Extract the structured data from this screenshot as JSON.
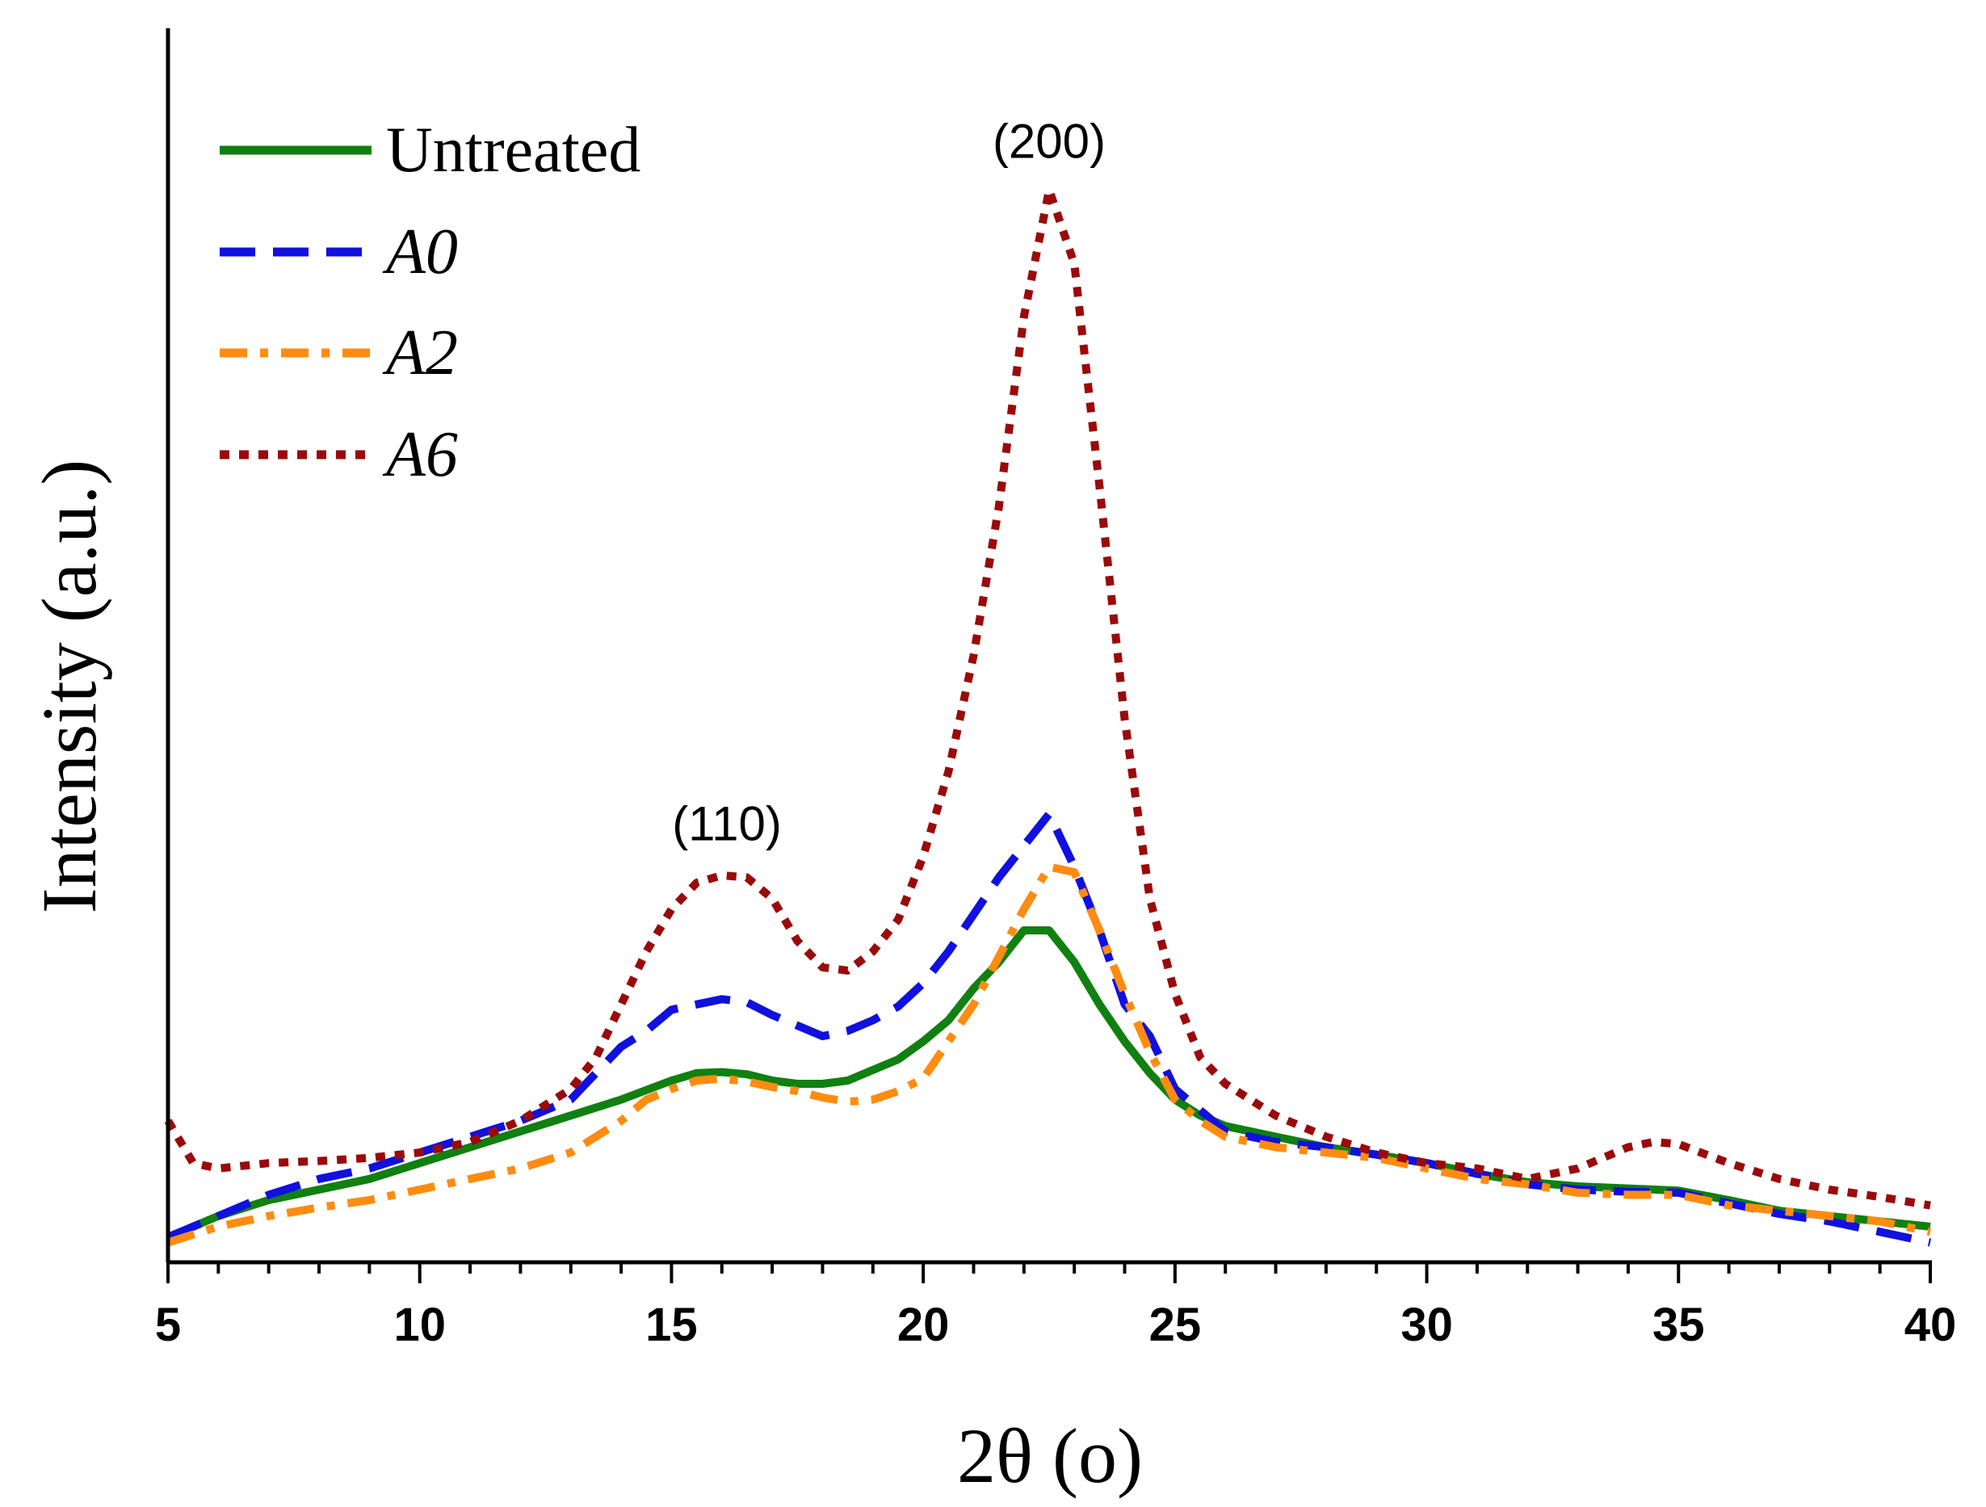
{
  "chart_data": {
    "type": "line",
    "title": "",
    "xlabel": "2θ (o)",
    "ylabel": "Intensity (a.u.)",
    "xlim": [
      5,
      40
    ],
    "ylim": [
      0,
      1
    ],
    "grid": false,
    "legend_position": "top-left",
    "x_ticks": [
      5,
      10,
      15,
      20,
      25,
      30,
      35,
      40
    ],
    "x_tick_labels": [
      "5",
      "10",
      "15",
      "20",
      "25",
      "30",
      "35",
      "40"
    ],
    "annotations": [
      {
        "text": "(110)",
        "x": 16.1,
        "y": 0.385
      },
      {
        "text": "(200)",
        "x": 22.5,
        "y": 1.03
      }
    ],
    "series": [
      {
        "name": "Untreated",
        "style": "solid",
        "color": "#108010",
        "x": [
          5,
          6,
          7,
          8,
          9,
          10,
          11,
          12,
          13,
          14,
          15,
          15.5,
          16,
          16.5,
          17,
          17.5,
          18,
          18.5,
          19,
          19.5,
          20,
          20.5,
          21,
          21.5,
          22,
          22.5,
          23,
          23.5,
          24,
          24.5,
          25,
          25.5,
          26,
          27,
          28,
          29,
          30,
          31,
          32,
          33,
          34,
          35,
          36,
          37,
          38,
          39,
          40
        ],
        "y": [
          0.01,
          0.03,
          0.045,
          0.055,
          0.065,
          0.08,
          0.095,
          0.11,
          0.125,
          0.14,
          0.158,
          0.165,
          0.166,
          0.164,
          0.158,
          0.155,
          0.155,
          0.158,
          0.168,
          0.178,
          0.195,
          0.215,
          0.245,
          0.27,
          0.3,
          0.3,
          0.27,
          0.23,
          0.195,
          0.165,
          0.14,
          0.125,
          0.115,
          0.105,
          0.095,
          0.088,
          0.08,
          0.07,
          0.062,
          0.058,
          0.056,
          0.054,
          0.045,
          0.035,
          0.03,
          0.025,
          0.02
        ]
      },
      {
        "name": "A0",
        "style": "dashed",
        "color": "#1010e0",
        "x": [
          5,
          6,
          7,
          8,
          9,
          10,
          11,
          12,
          13,
          13.5,
          14,
          14.5,
          15,
          15.5,
          16,
          16.5,
          17,
          17.5,
          18,
          18.5,
          19,
          19.5,
          20,
          20.5,
          21,
          21.5,
          22,
          22.5,
          23,
          23.5,
          24,
          24.5,
          25,
          25.5,
          26,
          27,
          28,
          29,
          30,
          31,
          32,
          33,
          34,
          35,
          36,
          37,
          38,
          39,
          40
        ],
        "y": [
          0.01,
          0.03,
          0.05,
          0.065,
          0.075,
          0.09,
          0.105,
          0.12,
          0.14,
          0.165,
          0.19,
          0.205,
          0.225,
          0.23,
          0.235,
          0.232,
          0.22,
          0.21,
          0.2,
          0.205,
          0.215,
          0.228,
          0.25,
          0.28,
          0.315,
          0.35,
          0.38,
          0.41,
          0.36,
          0.3,
          0.23,
          0.2,
          0.15,
          0.13,
          0.11,
          0.1,
          0.095,
          0.088,
          0.08,
          0.07,
          0.06,
          0.055,
          0.053,
          0.052,
          0.042,
          0.032,
          0.025,
          0.015,
          0.005
        ]
      },
      {
        "name": "A2",
        "style": "dashdot",
        "color": "#ff8c10",
        "x": [
          5,
          6,
          7,
          8,
          9,
          10,
          11,
          12,
          13,
          14,
          14.5,
          15,
          15.5,
          16,
          16.5,
          17,
          17.5,
          18,
          18.5,
          19,
          19.5,
          20,
          20.5,
          21,
          21.5,
          22,
          22.5,
          23,
          23.5,
          24,
          24.5,
          25,
          25.5,
          26,
          27,
          28,
          29,
          30,
          31,
          32,
          33,
          34,
          35,
          36,
          37,
          38,
          39,
          40
        ],
        "y": [
          0.005,
          0.02,
          0.03,
          0.038,
          0.045,
          0.055,
          0.065,
          0.075,
          0.09,
          0.12,
          0.14,
          0.15,
          0.158,
          0.16,
          0.157,
          0.152,
          0.148,
          0.142,
          0.138,
          0.14,
          0.148,
          0.16,
          0.195,
          0.23,
          0.275,
          0.32,
          0.36,
          0.355,
          0.3,
          0.24,
          0.185,
          0.14,
          0.12,
          0.105,
          0.095,
          0.09,
          0.085,
          0.075,
          0.065,
          0.06,
          0.052,
          0.05,
          0.05,
          0.04,
          0.035,
          0.03,
          0.025,
          0.015
        ]
      },
      {
        "name": "A6",
        "style": "dotted",
        "color": "#9b0a0a",
        "x": [
          5,
          5.5,
          6,
          7,
          8,
          9,
          10,
          11,
          12,
          13,
          13.5,
          14,
          14.5,
          15,
          15.5,
          16,
          16.5,
          17,
          17.5,
          18,
          18.5,
          19,
          19.5,
          20,
          20.5,
          21,
          21.5,
          22,
          22.5,
          23,
          23.5,
          24,
          24.5,
          25,
          25.5,
          26,
          27,
          28,
          29,
          30,
          31,
          32,
          33,
          34,
          34.5,
          35,
          36,
          37,
          38,
          39,
          40
        ],
        "y": [
          0.12,
          0.08,
          0.075,
          0.08,
          0.082,
          0.085,
          0.09,
          0.1,
          0.12,
          0.15,
          0.18,
          0.23,
          0.28,
          0.32,
          0.345,
          0.352,
          0.35,
          0.33,
          0.29,
          0.265,
          0.262,
          0.28,
          0.31,
          0.37,
          0.45,
          0.56,
          0.7,
          0.88,
          1.0,
          0.93,
          0.72,
          0.5,
          0.33,
          0.24,
          0.18,
          0.155,
          0.125,
          0.105,
          0.09,
          0.08,
          0.075,
          0.065,
          0.075,
          0.095,
          0.1,
          0.098,
          0.08,
          0.065,
          0.055,
          0.048,
          0.04
        ]
      }
    ]
  }
}
